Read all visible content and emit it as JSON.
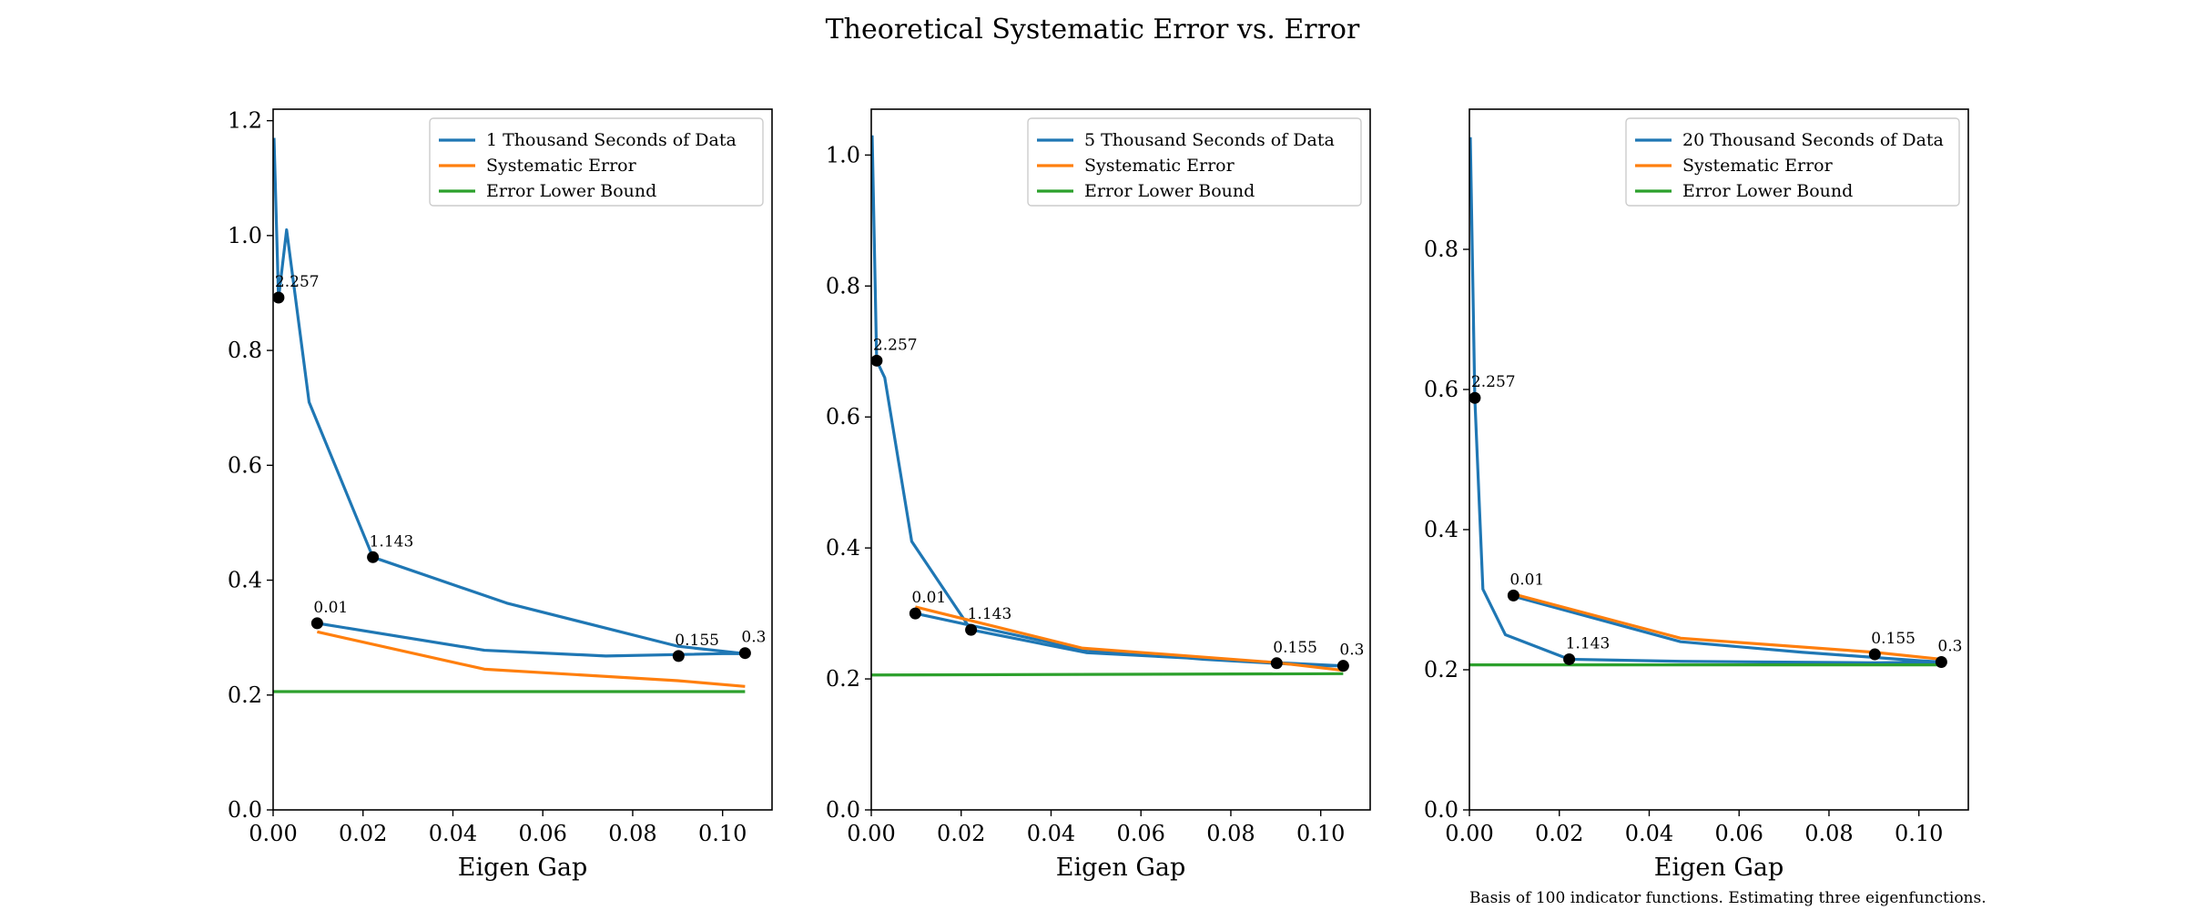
{
  "title": "Theoretical Systematic Error vs. Error",
  "caption": "Basis of 100 indicator functions. Estimating three eigenfunctions.",
  "colors": {
    "blue": "#1f77b4",
    "orange": "#ff7f0e",
    "green": "#2ca02c",
    "marker": "#000000"
  },
  "chart_data": [
    {
      "type": "line",
      "xlabel": "Eigen Gap",
      "ylabel": "",
      "xlim": [
        0,
        0.111
      ],
      "ylim": [
        0,
        1.22
      ],
      "xticks": [
        0.0,
        0.02,
        0.04,
        0.06,
        0.08,
        0.1
      ],
      "xtick_labels": [
        "0.00",
        "0.02",
        "0.04",
        "0.06",
        "0.08",
        "0.10"
      ],
      "yticks": [
        0.0,
        0.2,
        0.4,
        0.6,
        0.8,
        1.0,
        1.2
      ],
      "ytick_labels": [
        "0.0",
        "0.2",
        "0.4",
        "0.6",
        "0.8",
        "1.0",
        "1.2"
      ],
      "legend_position": "top-right",
      "series": [
        {
          "name": "1 Thousand Seconds of Data",
          "color": "blue",
          "x": [
            0.0002,
            0.0012,
            0.003,
            0.008,
            0.0222,
            0.052,
            0.09,
            0.105,
            0.1,
            0.074,
            0.047,
            0.0098
          ],
          "y": [
            1.17,
            0.89,
            1.01,
            0.71,
            0.44,
            0.36,
            0.285,
            0.272,
            0.272,
            0.268,
            0.278,
            0.325
          ]
        },
        {
          "name": "Systematic Error",
          "color": "orange",
          "x": [
            0.0098,
            0.047,
            0.09,
            0.105
          ],
          "y": [
            0.31,
            0.245,
            0.225,
            0.215
          ]
        },
        {
          "name": "Error Lower Bound",
          "color": "green",
          "x": [
            0.0,
            0.105
          ],
          "y": [
            0.206,
            0.206
          ]
        }
      ],
      "markers": [
        {
          "x": 0.0012,
          "y": 0.892,
          "label": "2.257"
        },
        {
          "x": 0.0222,
          "y": 0.44,
          "label": "1.143"
        },
        {
          "x": 0.0098,
          "y": 0.325,
          "label": "0.01"
        },
        {
          "x": 0.0902,
          "y": 0.268,
          "label": "0.155"
        },
        {
          "x": 0.105,
          "y": 0.273,
          "label": "0.3"
        }
      ]
    },
    {
      "type": "line",
      "xlabel": "Eigen Gap",
      "ylabel": "",
      "xlim": [
        0,
        0.111
      ],
      "ylim": [
        0,
        1.07
      ],
      "xticks": [
        0.0,
        0.02,
        0.04,
        0.06,
        0.08,
        0.1
      ],
      "xtick_labels": [
        "0.00",
        "0.02",
        "0.04",
        "0.06",
        "0.08",
        "0.10"
      ],
      "yticks": [
        0.0,
        0.2,
        0.4,
        0.6,
        0.8,
        1.0
      ],
      "ytick_labels": [
        "0.0",
        "0.2",
        "0.4",
        "0.6",
        "0.8",
        "1.0"
      ],
      "legend_position": "top-right",
      "series": [
        {
          "name": "5 Thousand Seconds of Data",
          "color": "blue",
          "x": [
            0.0002,
            0.0012,
            0.003,
            0.009,
            0.0222,
            0.048,
            0.09,
            0.105,
            0.1,
            0.074,
            0.047,
            0.0098
          ],
          "y": [
            1.03,
            0.686,
            0.66,
            0.41,
            0.275,
            0.24,
            0.225,
            0.22,
            0.22,
            0.23,
            0.245,
            0.3
          ]
        },
        {
          "name": "Systematic Error",
          "color": "orange",
          "x": [
            0.0098,
            0.047,
            0.09,
            0.105
          ],
          "y": [
            0.31,
            0.247,
            0.225,
            0.213
          ]
        },
        {
          "name": "Error Lower Bound",
          "color": "green",
          "x": [
            0.0,
            0.105
          ],
          "y": [
            0.206,
            0.208
          ]
        }
      ],
      "markers": [
        {
          "x": 0.0012,
          "y": 0.686,
          "label": "2.257"
        },
        {
          "x": 0.0222,
          "y": 0.275,
          "label": "1.143"
        },
        {
          "x": 0.0098,
          "y": 0.3,
          "label": "0.01"
        },
        {
          "x": 0.0902,
          "y": 0.224,
          "label": "0.155"
        },
        {
          "x": 0.105,
          "y": 0.22,
          "label": "0.3"
        }
      ]
    },
    {
      "type": "line",
      "xlabel": "Eigen Gap",
      "ylabel": "",
      "xlim": [
        0,
        0.111
      ],
      "ylim": [
        0,
        1.0
      ],
      "xticks": [
        0.0,
        0.02,
        0.04,
        0.06,
        0.08,
        0.1
      ],
      "xtick_labels": [
        "0.00",
        "0.02",
        "0.04",
        "0.06",
        "0.08",
        "0.10"
      ],
      "yticks": [
        0.0,
        0.2,
        0.4,
        0.6,
        0.8
      ],
      "ytick_labels": [
        "0.0",
        "0.2",
        "0.4",
        "0.6",
        "0.8"
      ],
      "legend_position": "top-right",
      "series": [
        {
          "name": "20 Thousand Seconds of Data",
          "color": "blue",
          "x": [
            0.0002,
            0.0012,
            0.003,
            0.008,
            0.0222,
            0.047,
            0.09,
            0.105,
            0.1,
            0.074,
            0.047,
            0.0098
          ],
          "y": [
            0.96,
            0.588,
            0.315,
            0.25,
            0.215,
            0.212,
            0.21,
            0.211,
            0.213,
            0.225,
            0.24,
            0.305
          ]
        },
        {
          "name": "Systematic Error",
          "color": "orange",
          "x": [
            0.0098,
            0.047,
            0.09,
            0.105
          ],
          "y": [
            0.308,
            0.245,
            0.225,
            0.215
          ]
        },
        {
          "name": "Error Lower Bound",
          "color": "green",
          "x": [
            0.0,
            0.105
          ],
          "y": [
            0.207,
            0.207
          ]
        }
      ],
      "markers": [
        {
          "x": 0.0012,
          "y": 0.588,
          "label": "2.257"
        },
        {
          "x": 0.0222,
          "y": 0.215,
          "label": "1.143"
        },
        {
          "x": 0.0098,
          "y": 0.306,
          "label": "0.01"
        },
        {
          "x": 0.0902,
          "y": 0.222,
          "label": "0.155"
        },
        {
          "x": 0.105,
          "y": 0.211,
          "label": "0.3"
        }
      ]
    }
  ]
}
